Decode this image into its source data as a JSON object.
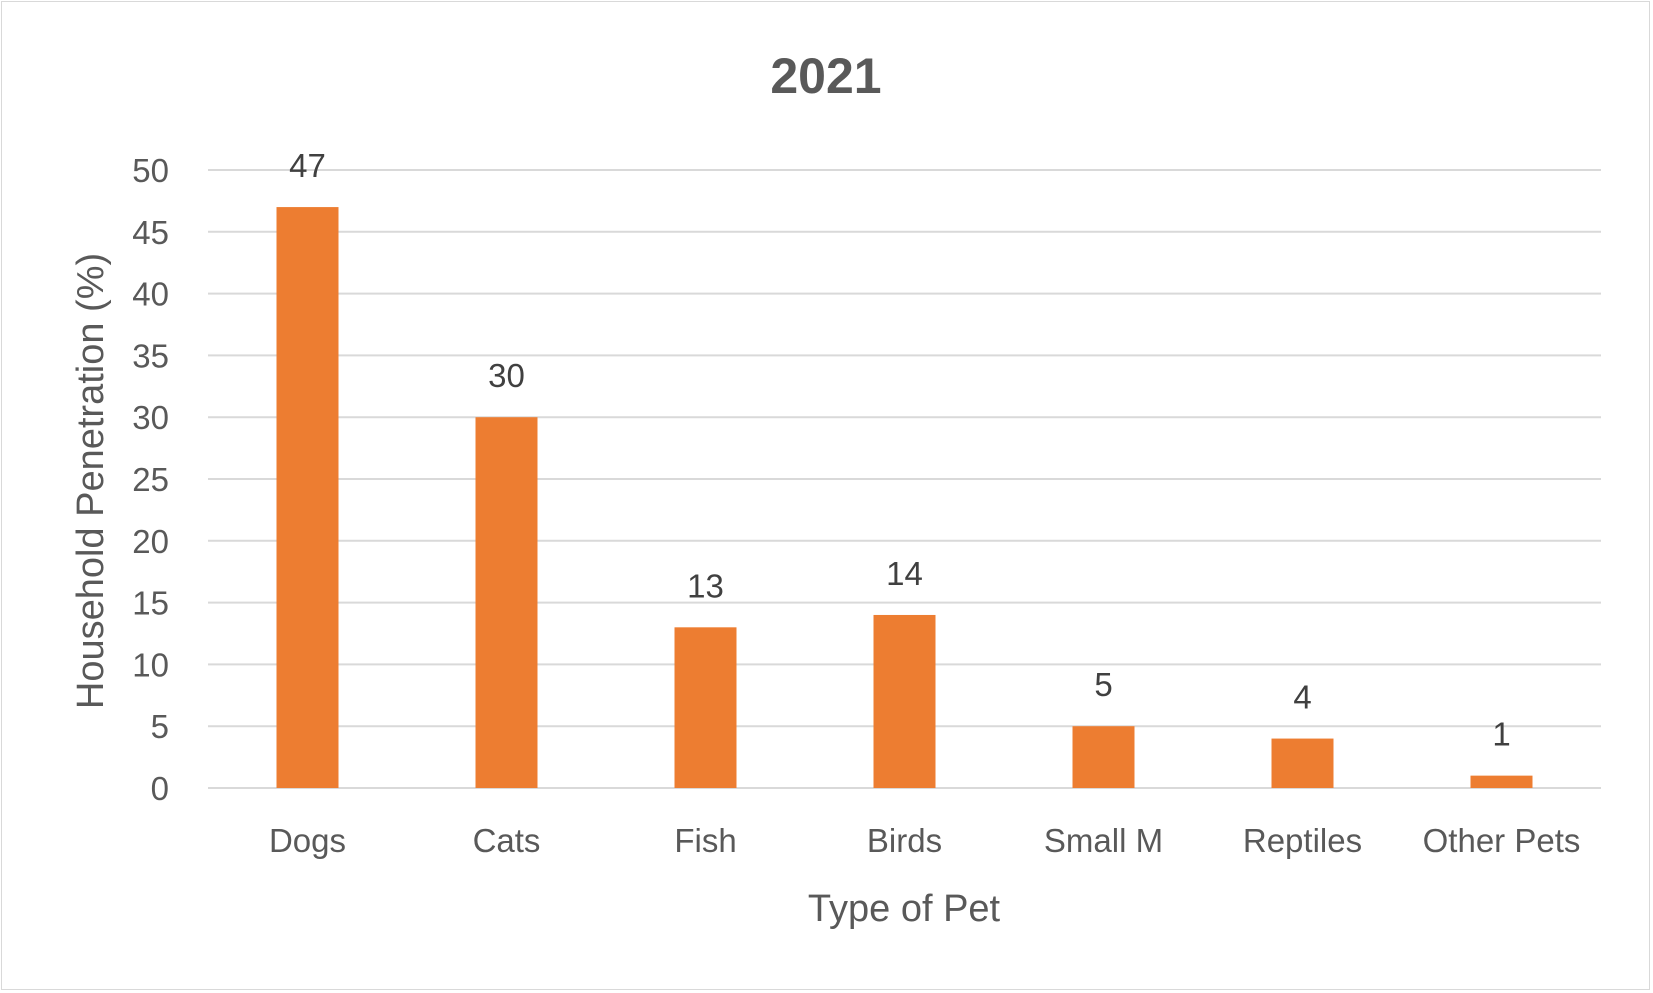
{
  "chart_data": {
    "type": "bar",
    "title": "2021",
    "xlabel": "Type of Pet",
    "ylabel": "Household Penetration (%)",
    "categories": [
      "Dogs",
      "Cats",
      "Fish",
      "Birds",
      "Small M",
      "Reptiles",
      "Other Pets"
    ],
    "values": [
      47,
      30,
      13,
      14,
      5,
      4,
      1
    ],
    "data_labels": [
      "47",
      "30",
      "13",
      "14",
      "5",
      "4",
      "1"
    ],
    "ylim": [
      0,
      50
    ],
    "yticks": [
      0,
      5,
      10,
      15,
      20,
      25,
      30,
      35,
      40,
      45,
      50
    ],
    "ytick_labels": [
      "0",
      "5",
      "10",
      "15",
      "20",
      "25",
      "30",
      "35",
      "40",
      "45",
      "50"
    ],
    "grid": true,
    "legend": "none",
    "bar_color": "#ED7D31",
    "grid_color": "#d9d9d9"
  }
}
